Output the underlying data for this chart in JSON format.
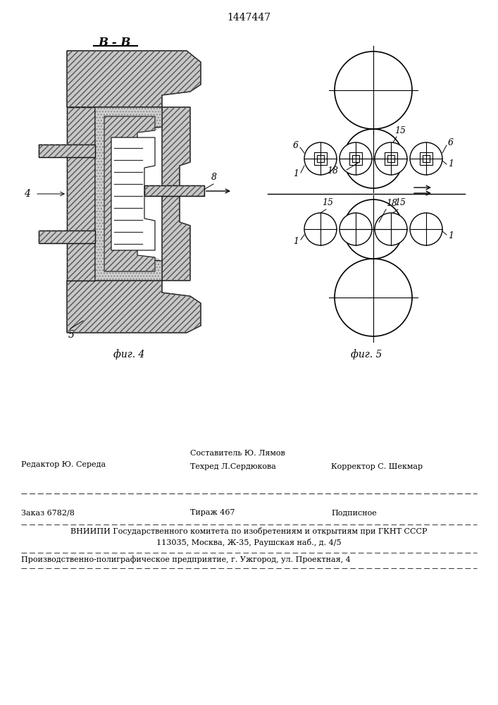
{
  "patent_number": "1447447",
  "fig4_label": "фиг. 4",
  "fig5_label": "фиг. 5",
  "section_label": "В - В",
  "bg_color": "#ffffff",
  "line_color": "#000000"
}
